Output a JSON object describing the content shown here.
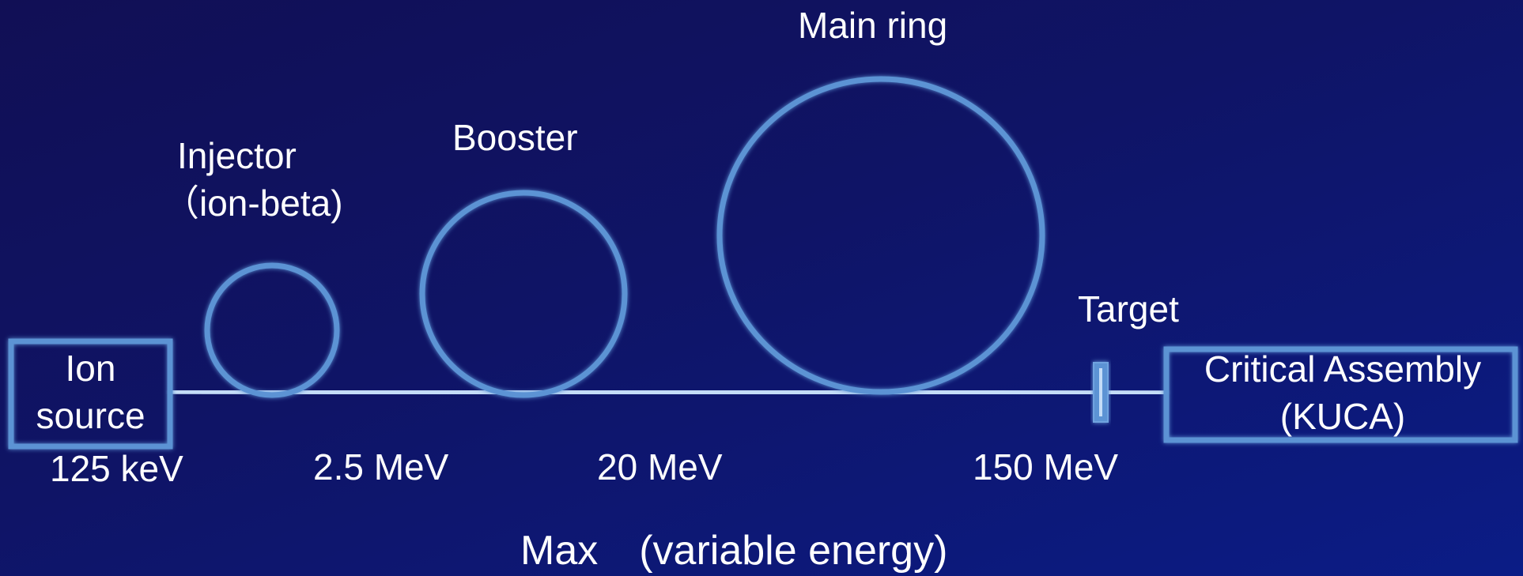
{
  "colors": {
    "background_top": "#110f55",
    "background_bottom": "#0b1c86",
    "ring_stroke": "#5b93d4",
    "beamline": "#c4dcf7",
    "text": "#ffffff"
  },
  "components": {
    "ion_source": {
      "line1": "Ion",
      "line2": "source"
    },
    "injector": {
      "line1": "Injector",
      "line2": "（ion-beta)"
    },
    "booster": {
      "label": "Booster"
    },
    "main_ring": {
      "label": "Main ring"
    },
    "target": {
      "label": "Target"
    },
    "critical_assembly": {
      "line1": "Critical Assembly",
      "line2": "(KUCA)"
    }
  },
  "energies": {
    "ion_source": "125 keV",
    "injector": "2.5 MeV",
    "booster": "20 MeV",
    "main_ring": "150 MeV"
  },
  "footer": {
    "note": "Max　(variable energy)"
  }
}
